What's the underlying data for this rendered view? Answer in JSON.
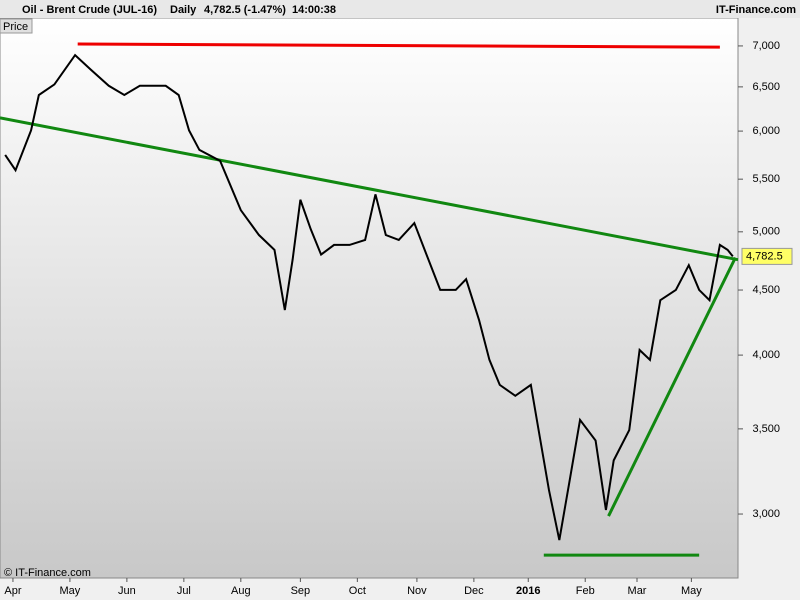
{
  "chart_data": {
    "type": "line",
    "instrument": "Oil - Brent Crude (JUL-16)",
    "period": "Daily",
    "change": "4,782.5 (-1.47%)",
    "time": "14:00:38",
    "brand": "IT-Finance.com",
    "panel_label": "Price",
    "copyright": "© IT-Finance.com",
    "log_scale": true,
    "xlim": [
      0,
      285
    ],
    "ylim": [
      2672,
      7363
    ],
    "xticks": [
      {
        "value": 5,
        "label": "Apr"
      },
      {
        "value": 27,
        "label": "May"
      },
      {
        "value": 49,
        "label": "Jun"
      },
      {
        "value": 71,
        "label": "Jul"
      },
      {
        "value": 93,
        "label": "Aug"
      },
      {
        "value": 116,
        "label": "Sep"
      },
      {
        "value": 138,
        "label": "Oct"
      },
      {
        "value": 161,
        "label": "Nov"
      },
      {
        "value": 183,
        "label": "Dec"
      },
      {
        "value": 204,
        "label": "2016"
      },
      {
        "value": 226,
        "label": "Feb"
      },
      {
        "value": 246,
        "label": "Mar"
      },
      {
        "value": 267,
        "label": "May"
      }
    ],
    "yticks": [
      {
        "value": 3000,
        "label": "3,000"
      },
      {
        "value": 3500,
        "label": "3,500"
      },
      {
        "value": 4000,
        "label": "4,000"
      },
      {
        "value": 4500,
        "label": "4,500"
      },
      {
        "value": 5000,
        "label": "5,000"
      },
      {
        "value": 5500,
        "label": "5,500"
      },
      {
        "value": 6000,
        "label": "6,000"
      },
      {
        "value": 6500,
        "label": "6,500"
      },
      {
        "value": 7000,
        "label": "7,000"
      }
    ],
    "series": [
      {
        "color": "#000000",
        "x": [
          2,
          6,
          12,
          15,
          21,
          29,
          35,
          42,
          48,
          54,
          64,
          69,
          73,
          77,
          85,
          93,
          100,
          106,
          110,
          113,
          116,
          120,
          124,
          129,
          135,
          141,
          145,
          149,
          154,
          160,
          164,
          170,
          176,
          180,
          185,
          189,
          193,
          199,
          205,
          208,
          212,
          216,
          220,
          224,
          230,
          234,
          237,
          243,
          247,
          251,
          255,
          261,
          266,
          270,
          274,
          278,
          281,
          283
        ],
        "values": [
          5746,
          5590,
          6008,
          6405,
          6529,
          6885,
          6708,
          6513,
          6405,
          6513,
          6513,
          6405,
          6008,
          5799,
          5685,
          5200,
          4971,
          4839,
          4340,
          4754,
          5299,
          5024,
          4798,
          4883,
          4883,
          4927,
          5351,
          4971,
          4927,
          5080,
          4839,
          4501,
          4501,
          4589,
          4262,
          3966,
          3790,
          3716,
          3790,
          3492,
          3133,
          2862,
          3189,
          3557,
          3427,
          3022,
          3306,
          3492,
          4037,
          3966,
          4418,
          4501,
          4707,
          4501,
          4418,
          4883,
          4839,
          4782.5
        ]
      }
    ],
    "last_value": {
      "value": 4782.5,
      "label": "4,782.5"
    },
    "trend_lines": [
      {
        "color": "#ee0000",
        "x": [
          30,
          278
        ],
        "values": [
          7024,
          6985
        ]
      },
      {
        "color": "#118811",
        "x": [
          0,
          285
        ],
        "values": [
          6145,
          4754
        ]
      },
      {
        "color": "#118811",
        "x": [
          235,
          284
        ],
        "values": [
          2989,
          4772
        ]
      },
      {
        "color": "#118811",
        "x": [
          210,
          270
        ],
        "values": [
          2785,
          2785
        ]
      }
    ]
  }
}
